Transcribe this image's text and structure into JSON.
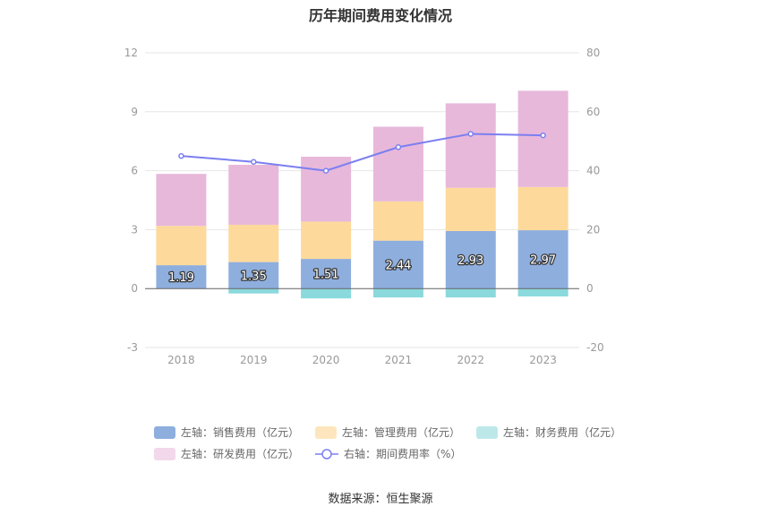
{
  "title": "历年期间费用变化情况",
  "source": "数据来源：恒生聚源",
  "colors": {
    "sales": "#8eaede",
    "admin": "#fdd99b",
    "finance": "#8ad9dc",
    "rd": "#e7b8da",
    "rate": "#7b7ff0",
    "legend_admin": "#fde6be",
    "legend_finance": "#bde8ea",
    "legend_rd": "#f2d8ea"
  },
  "legend": [
    {
      "label": "左轴：销售费用（亿元）",
      "key": "sales"
    },
    {
      "label": "左轴：管理费用（亿元）",
      "key": "admin"
    },
    {
      "label": "左轴：财务费用（亿元）",
      "key": "finance"
    },
    {
      "label": "左轴：研发费用（亿元）",
      "key": "rd"
    },
    {
      "label": "右轴：期间费用率（%）",
      "key": "rate"
    }
  ],
  "chart_data": {
    "type": "bar",
    "stacked": true,
    "categories": [
      "2018",
      "2019",
      "2020",
      "2021",
      "2022",
      "2023"
    ],
    "left_axis": {
      "ticks": [
        -3,
        0,
        3,
        6,
        9,
        12
      ],
      "ylim": [
        -3,
        12
      ]
    },
    "right_axis": {
      "ticks": [
        -20,
        0,
        20,
        40,
        60,
        80
      ],
      "ylim": [
        -20,
        80
      ]
    },
    "series": [
      {
        "name": "左轴：销售费用（亿元）",
        "key": "sales",
        "axis": "left",
        "values": [
          1.19,
          1.35,
          1.51,
          2.44,
          2.93,
          2.97
        ],
        "labels": [
          "1.19",
          "1.35",
          "1.51",
          "2.44",
          "2.93",
          "2.97"
        ]
      },
      {
        "name": "左轴：管理费用（亿元）",
        "key": "admin",
        "axis": "left",
        "values": [
          2.0,
          1.9,
          1.9,
          2.0,
          2.2,
          2.2
        ]
      },
      {
        "name": "左轴：财务费用（亿元）",
        "key": "finance",
        "axis": "left",
        "values": [
          0.0,
          -0.25,
          -0.5,
          -0.45,
          -0.45,
          -0.4
        ]
      },
      {
        "name": "左轴：研发费用（亿元）",
        "key": "rd",
        "axis": "left",
        "values": [
          2.65,
          3.05,
          3.3,
          3.8,
          4.3,
          4.9
        ]
      },
      {
        "name": "右轴：期间费用率（%）",
        "key": "rate",
        "axis": "right",
        "type": "line",
        "values": [
          45,
          43,
          40,
          48,
          52.5,
          52
        ]
      }
    ],
    "grid": true
  }
}
